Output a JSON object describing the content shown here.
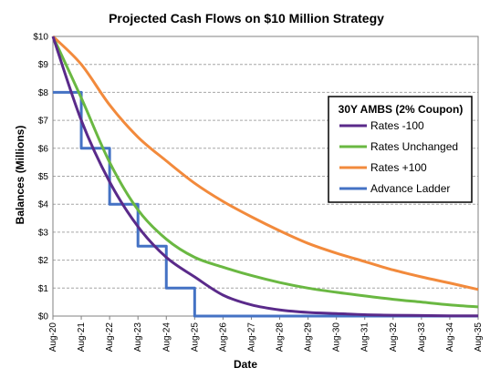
{
  "chart_data": {
    "type": "line",
    "title": "Projected Cash Flows on $10 Million Strategy",
    "xlabel": "Date",
    "ylabel": "Balances (Millions)",
    "ylim": [
      0,
      10
    ],
    "yticks": [
      "$0",
      "$1",
      "$2",
      "$3",
      "$4",
      "$5",
      "$6",
      "$7",
      "$8",
      "$9",
      "$10"
    ],
    "x": [
      "Aug-20",
      "Aug-21",
      "Aug-22",
      "Aug-23",
      "Aug-24",
      "Aug-25",
      "Aug-26",
      "Aug-27",
      "Aug-28",
      "Aug-29",
      "Aug-30",
      "Aug-31",
      "Aug-32",
      "Aug-33",
      "Aug-34",
      "Aug-35"
    ],
    "grid": "horizontal",
    "legend": {
      "title": "30Y AMBS (2% Coupon)",
      "placement": "top-right"
    },
    "series": [
      {
        "name": "Rates -100",
        "color": "#5a2a8a",
        "values": [
          10,
          7.0,
          4.8,
          3.2,
          2.1,
          1.4,
          0.75,
          0.4,
          0.22,
          0.13,
          0.09,
          0.05,
          0.03,
          0.02,
          0.01,
          0.01
        ]
      },
      {
        "name": "Rates Unchanged",
        "color": "#6ab842",
        "values": [
          10,
          7.8,
          5.5,
          3.8,
          2.75,
          2.1,
          1.75,
          1.45,
          1.2,
          1.0,
          0.85,
          0.72,
          0.6,
          0.5,
          0.4,
          0.33
        ]
      },
      {
        "name": "Rates +100",
        "color": "#f28a3c",
        "values": [
          10,
          9.0,
          7.55,
          6.4,
          5.55,
          4.75,
          4.1,
          3.55,
          3.05,
          2.6,
          2.25,
          1.95,
          1.65,
          1.4,
          1.18,
          0.95
        ]
      },
      {
        "name": "Advance Ladder",
        "color": "#4472c4",
        "type": "step",
        "values": [
          8,
          6,
          4,
          2.5,
          1,
          0,
          0,
          0,
          0,
          0,
          0,
          0,
          0,
          0,
          0,
          0
        ]
      }
    ]
  }
}
